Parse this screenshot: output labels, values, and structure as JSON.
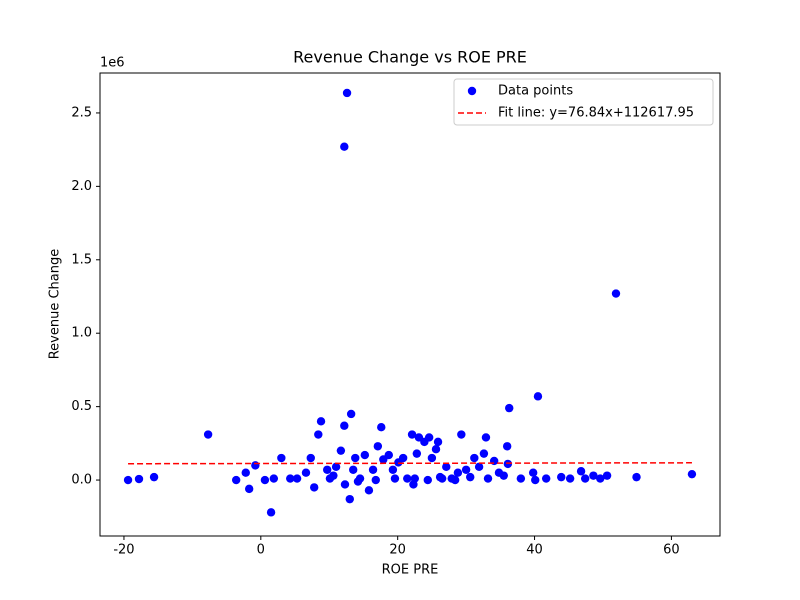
{
  "chart_data": {
    "type": "scatter",
    "title": "Revenue Change vs ROE PRE",
    "x_label": "ROE PRE",
    "y_label": "Revenue Change",
    "y_offset_label": "1e6",
    "xlim": [
      -23.5,
      67.1
    ],
    "ylim": [
      -0.381,
      2.772
    ],
    "xticks": [
      -20,
      0,
      20,
      40,
      60
    ],
    "yticks": [
      {
        "value": 0,
        "label": "0.0"
      },
      0.5,
      {
        "value": 1,
        "label": "1.0"
      },
      1.5,
      {
        "value": 2,
        "label": "2.0"
      },
      2.5
    ],
    "grid": false,
    "legend": "upper right",
    "series": [
      {
        "name": "Data points",
        "color": "#0000ff",
        "marker": "circle",
        "x": [
          -19.4,
          -17.8,
          -15.6,
          -7.7,
          -3.6,
          -2.2,
          -1.7,
          -0.8,
          0.6,
          1.5,
          1.9,
          3.0,
          4.3,
          5.3,
          6.6,
          7.3,
          7.8,
          8.4,
          8.8,
          9.7,
          10.1,
          11.0,
          11.7,
          12.2,
          12.2,
          12.6,
          12.3,
          13.0,
          13.2,
          13.5,
          13.8,
          14.5,
          15.2,
          15.8,
          16.4,
          17.1,
          17.6,
          17.9,
          18.7,
          19.3,
          20.1,
          20.8,
          21.4,
          22.1,
          22.3,
          22.8,
          23.1,
          23.9,
          24.6,
          25.0,
          25.6,
          25.9,
          26.2,
          27.1,
          27.9,
          28.8,
          29.3,
          30.0,
          30.6,
          31.2,
          31.9,
          32.6,
          32.9,
          33.2,
          34.1,
          34.8,
          35.5,
          36.0,
          36.1,
          36.3,
          38.0,
          39.8,
          40.1,
          40.5,
          41.7,
          43.9,
          45.2,
          46.8,
          47.4,
          48.6,
          49.6,
          50.6,
          51.9,
          54.9,
          63.0,
          10.6,
          14.2,
          16.8,
          19.6,
          22.5,
          24.4,
          26.5,
          28.4
        ],
        "values": [
          0,
          0.007,
          0.02,
          0.31,
          0,
          0.05,
          -0.06,
          0.1,
          0,
          -0.22,
          0.01,
          0.15,
          0.01,
          0.01,
          0.05,
          0.15,
          -0.05,
          0.31,
          0.4,
          0.07,
          0.01,
          0.09,
          0.2,
          0.37,
          2.27,
          2.636,
          -0.03,
          -0.13,
          0.45,
          0.07,
          0.15,
          0.01,
          0.17,
          -0.07,
          0.07,
          0.23,
          0.36,
          0.14,
          0.17,
          0.07,
          0.12,
          0.15,
          0.01,
          0.31,
          -0.03,
          0.18,
          0.29,
          0.26,
          0.29,
          0.15,
          0.21,
          0.26,
          0.02,
          0.09,
          0.01,
          0.05,
          0.31,
          0.07,
          0.02,
          0.15,
          0.09,
          0.18,
          0.29,
          0.01,
          0.13,
          0.05,
          0.03,
          0.23,
          0.11,
          0.49,
          0.01,
          0.05,
          0,
          0.57,
          0.01,
          0.02,
          0.01,
          0.06,
          0.01,
          0.03,
          0.01,
          0.03,
          1.27,
          0.02,
          0.04,
          0.03,
          -0.01,
          0,
          0.01,
          0.01,
          0,
          0.01,
          0
        ]
      },
      {
        "name": "Fit line: y=76.84x+112617.95",
        "color": "#ff0000",
        "linestyle": "dashed",
        "x": [
          -19.4,
          63.0
        ],
        "values": [
          0.1111,
          0.1175
        ]
      }
    ]
  }
}
